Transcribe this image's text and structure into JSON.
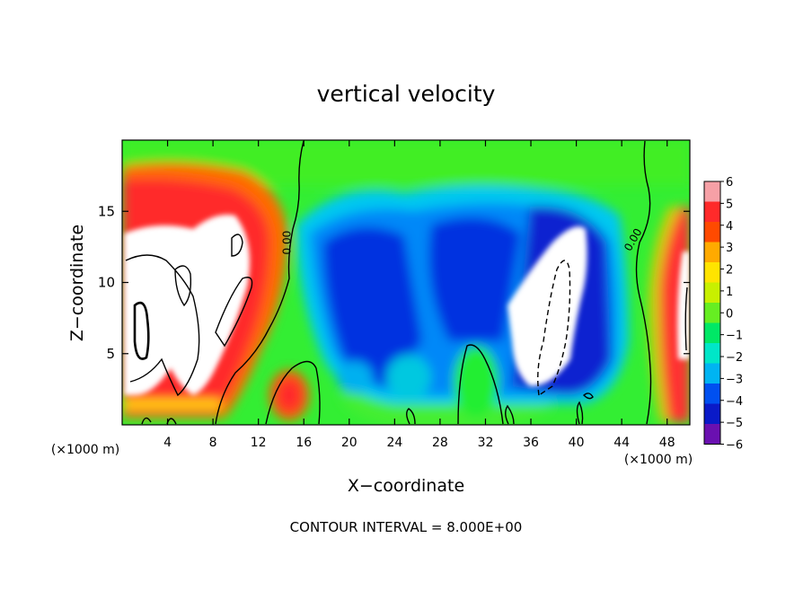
{
  "chart_data": {
    "type": "heatmap",
    "title": "vertical velocity",
    "xlabel": "X−coordinate",
    "ylabel": "Z−coordinate",
    "x_unit_left": "(×1000 m)",
    "x_unit_right": "(×1000 m)",
    "footer": "CONTOUR INTERVAL = 8.000E+00",
    "xlim": [
      0,
      50
    ],
    "ylim": [
      0,
      20
    ],
    "x_ticks": [
      4,
      8,
      12,
      16,
      20,
      24,
      28,
      32,
      36,
      40,
      44,
      48
    ],
    "y_ticks": [
      5,
      10,
      15
    ],
    "colorbar": {
      "levels": [
        6,
        5,
        4,
        3,
        2,
        1,
        0,
        -1,
        -2,
        -3,
        -4,
        -5,
        -6
      ],
      "labels": [
        "6",
        "5",
        "4",
        "3",
        "2",
        "1",
        "0",
        "−1",
        "−2",
        "−3",
        "−4",
        "−5",
        "−6"
      ],
      "colors": [
        "#f6a0a6",
        "#ff2a2a",
        "#ff4a00",
        "#ffaa00",
        "#ffe400",
        "#c8f000",
        "#66ee22",
        "#00e866",
        "#00e6c8",
        "#00b4f2",
        "#0050f0",
        "#0a1ac8",
        "#6a10b0"
      ]
    },
    "contour_labels": [
      {
        "text": "0.00",
        "x": 14.5,
        "y": 12.8,
        "rotate": -90
      },
      {
        "text": "0.00",
        "x": 45.0,
        "y": 13.0,
        "rotate": -60
      }
    ],
    "background_color": "#33ee33"
  }
}
